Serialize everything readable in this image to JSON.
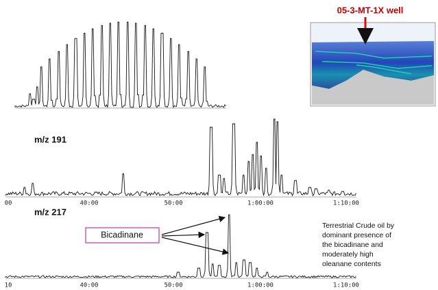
{
  "inset": {
    "title": "05-3-MT-1X well"
  },
  "trace_191": {
    "label": "m/z 191",
    "axis_labels": [
      "00",
      "40:00",
      "50:00",
      "1:00:00",
      "1:10:00"
    ]
  },
  "trace_217": {
    "label": "m/z 217",
    "axis_labels": [
      "10",
      "40:00",
      "50:00",
      "1:00:00",
      "1:10:00"
    ]
  },
  "callout": {
    "label": "Bicadinane"
  },
  "note": {
    "lines": [
      "Terrestrial Crude oil by",
      "dominant presence of",
      "the bicadinane and",
      "moderately high",
      "oleanane contents"
    ]
  }
}
